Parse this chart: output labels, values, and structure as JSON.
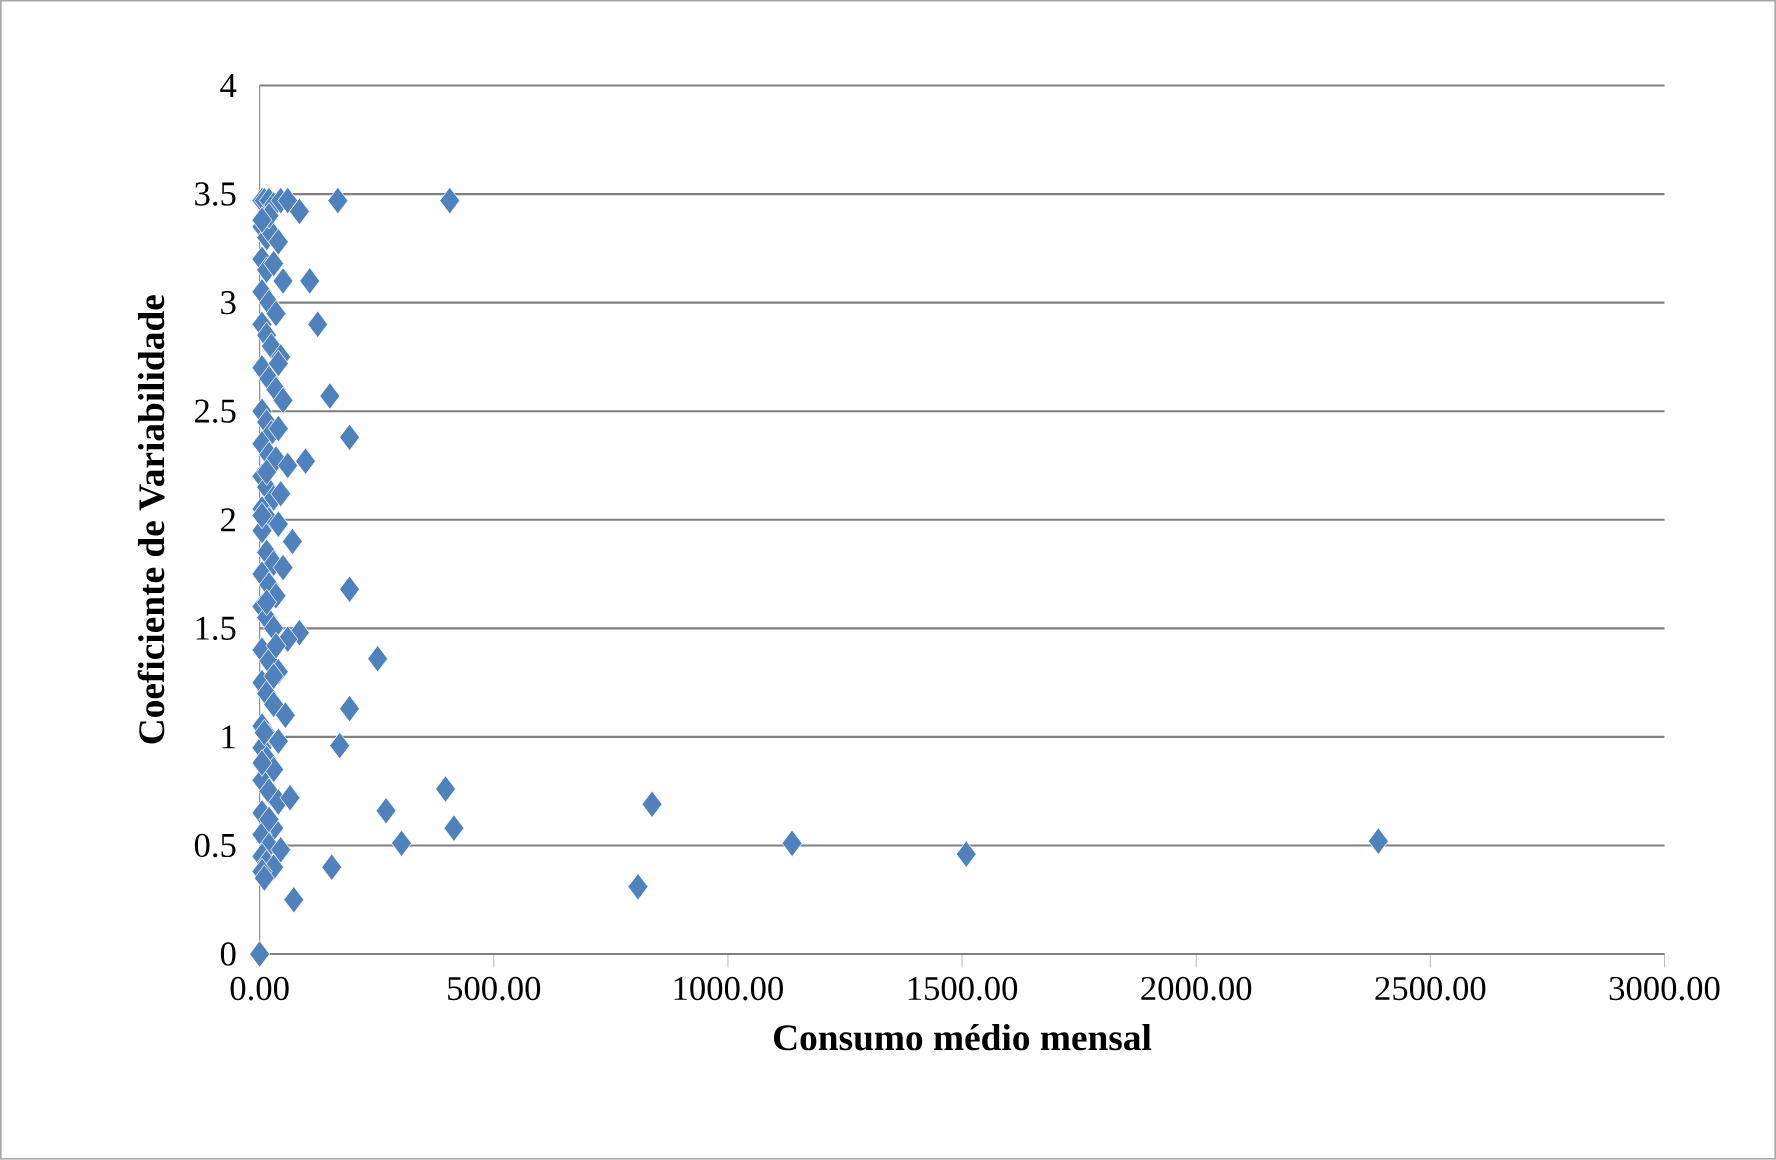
{
  "chart_data": {
    "type": "scatter",
    "xlabel": "Consumo médio mensal",
    "ylabel": "Coeficiente de Variabilidade",
    "series": [
      {
        "color": "#4f81bd",
        "x": [
          0,
          406,
          167,
          107,
          124,
          150,
          192,
          98,
          192,
          85,
          252,
          192,
          171,
          397,
          838,
          270,
          415,
          1137,
          1509,
          2389,
          303,
          808,
          154,
          73,
          5,
          10,
          20,
          30,
          45,
          60,
          85,
          5,
          15,
          25,
          40,
          5,
          15,
          30,
          50,
          5,
          20,
          35,
          5,
          15,
          25,
          45,
          5,
          20,
          35,
          50,
          5,
          15,
          25,
          40,
          5,
          20,
          35,
          60,
          5,
          15,
          30,
          45,
          5,
          20,
          40,
          70,
          5,
          15,
          30,
          50,
          5,
          20,
          35,
          5,
          15,
          30,
          60,
          5,
          20,
          40,
          5,
          15,
          30,
          55,
          5,
          20,
          40,
          5,
          15,
          30,
          5,
          20,
          40,
          65,
          5,
          30,
          5,
          20,
          45,
          5,
          15,
          30,
          5,
          10,
          20,
          40,
          5,
          15,
          30,
          5,
          20,
          5,
          15,
          35,
          10
        ],
        "values": [
          0,
          3.47,
          3.47,
          3.1,
          2.9,
          2.57,
          2.38,
          2.27,
          1.68,
          1.48,
          1.36,
          1.13,
          0.96,
          0.76,
          0.69,
          0.66,
          0.58,
          0.51,
          0.46,
          0.52,
          0.51,
          0.31,
          0.4,
          0.25,
          3.47,
          3.47,
          3.47,
          3.45,
          3.47,
          3.47,
          3.42,
          3.35,
          3.3,
          3.32,
          3.28,
          3.2,
          3.15,
          3.18,
          3.1,
          3.05,
          3.0,
          2.95,
          2.9,
          2.85,
          2.8,
          2.75,
          2.7,
          2.65,
          2.6,
          2.55,
          2.5,
          2.45,
          2.4,
          2.42,
          2.35,
          2.3,
          2.28,
          2.25,
          2.2,
          2.15,
          2.1,
          2.12,
          2.05,
          2.0,
          1.98,
          1.9,
          1.95,
          1.85,
          1.8,
          1.78,
          1.75,
          1.7,
          1.65,
          1.6,
          1.55,
          1.5,
          1.45,
          1.4,
          1.35,
          1.3,
          1.25,
          1.2,
          1.15,
          1.1,
          1.05,
          1.0,
          0.98,
          0.95,
          0.9,
          0.85,
          0.8,
          0.75,
          0.7,
          0.72,
          0.65,
          0.58,
          0.55,
          0.5,
          0.48,
          0.45,
          0.42,
          0.4,
          0.38,
          0.35,
          3.4,
          2.72,
          2.02,
          1.62,
          1.28,
          0.88,
          0.62,
          3.38,
          2.22,
          1.42,
          1.02
        ]
      }
    ],
    "xlim": [
      0,
      3000
    ],
    "ylim": [
      0,
      4
    ],
    "xticks": [
      {
        "value": 0,
        "label": "0.00"
      },
      {
        "value": 500,
        "label": "500.00"
      },
      {
        "value": 1000,
        "label": "1000.00"
      },
      {
        "value": 1500,
        "label": "1500.00"
      },
      {
        "value": 2000,
        "label": "2000.00"
      },
      {
        "value": 2500,
        "label": "2500.00"
      },
      {
        "value": 3000,
        "label": "3000.00"
      }
    ],
    "yticks": [
      0,
      0.5,
      1,
      1.5,
      2,
      2.5,
      3,
      3.5,
      4
    ],
    "grid": "y",
    "marker": "diamond"
  }
}
